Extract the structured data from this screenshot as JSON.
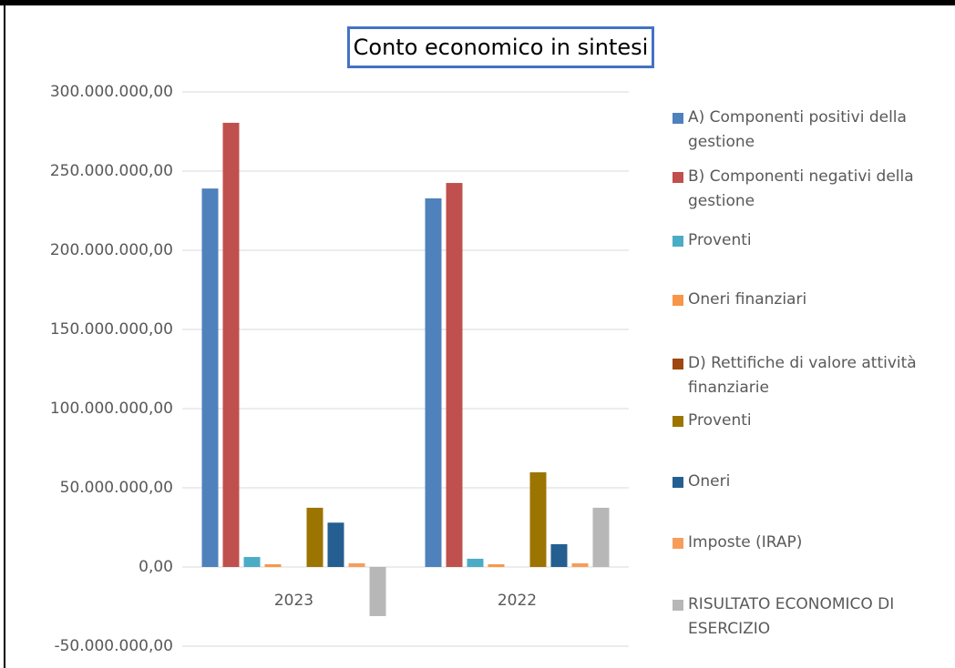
{
  "chart_data": {
    "type": "bar",
    "title": "Conto economico in sintesi",
    "categories": [
      "2023",
      "2022"
    ],
    "series": [
      {
        "name": "A) Componenti positivi della gestione",
        "color": "#4f81bd",
        "values": [
          239000000,
          232800000
        ]
      },
      {
        "name": "B) Componenti negativi della gestione",
        "color": "#c0504d",
        "values": [
          280500000,
          242500000
        ]
      },
      {
        "name": "Proventi",
        "color": "#4bacc6",
        "values": [
          6300000,
          5200000
        ]
      },
      {
        "name": "Oneri finanziari",
        "color": "#f79646",
        "values": [
          1700000,
          1700000
        ]
      },
      {
        "name": "D) Rettifiche di valore attività finanziarie",
        "color": "#a0460f",
        "values": [
          0,
          0
        ]
      },
      {
        "name": "Proventi",
        "color": "#9c7400",
        "values": [
          37400000,
          59800000
        ]
      },
      {
        "name": "Oneri",
        "color": "#255e91",
        "values": [
          28000000,
          14400000
        ]
      },
      {
        "name": "Imposte (IRAP)",
        "color": "#f79d5c",
        "values": [
          2300000,
          2300000
        ]
      },
      {
        "name": "RISULTATO ECONOMICO DI ESERCIZIO",
        "color": "#b7b7b7",
        "values": [
          -31000000,
          37400000
        ]
      }
    ],
    "ylim": [
      -50000000,
      300000000
    ],
    "yticks": [
      {
        "value": -50000000,
        "label": "-50.000.000,00"
      },
      {
        "value": 0,
        "label": "0,00"
      },
      {
        "value": 50000000,
        "label": "50.000.000,00"
      },
      {
        "value": 100000000,
        "label": "100.000.000,00"
      },
      {
        "value": 150000000,
        "label": "150.000.000,00"
      },
      {
        "value": 200000000,
        "label": "200.000.000,00"
      },
      {
        "value": 250000000,
        "label": "250.000.000,00"
      },
      {
        "value": 300000000,
        "label": "300.000.000,00"
      }
    ],
    "grid": true,
    "legend": "right"
  }
}
